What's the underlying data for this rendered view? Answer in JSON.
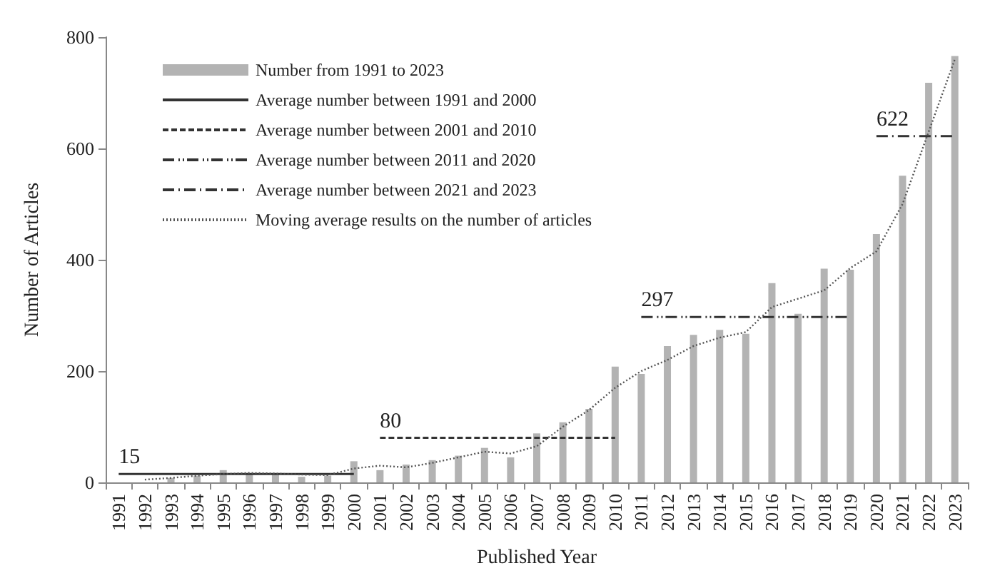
{
  "chart_data": {
    "type": "bar",
    "xlabel": "Published Year",
    "ylabel": "Number of Articles",
    "categories": [
      "1991",
      "1992",
      "1993",
      "1994",
      "1995",
      "1996",
      "1997",
      "1998",
      "1999",
      "2000",
      "2001",
      "2002",
      "2003",
      "2004",
      "2005",
      "2006",
      "2007",
      "2008",
      "2009",
      "2010",
      "2011",
      "2012",
      "2013",
      "2014",
      "2015",
      "2016",
      "2017",
      "2018",
      "2019",
      "2020",
      "2021",
      "2022",
      "2023"
    ],
    "series": [
      {
        "name": "Number from 1991 to 2023",
        "color": "#b3b3b3",
        "values": [
          null,
          null,
          8,
          12,
          22,
          16,
          14,
          10,
          12,
          38,
          22,
          32,
          40,
          48,
          62,
          45,
          88,
          108,
          132,
          208,
          195,
          245,
          265,
          274,
          267,
          358,
          303,
          384,
          382,
          446,
          551,
          718,
          766
        ]
      },
      {
        "name": "Average number between 1991 and 2000",
        "type": "line",
        "line_style": "solid",
        "color": "#333333",
        "values": [
          15,
          15,
          15,
          15,
          15,
          15,
          15,
          15,
          15,
          15,
          null,
          null,
          null,
          null,
          null,
          null,
          null,
          null,
          null,
          null,
          null,
          null,
          null,
          null,
          null,
          null,
          null,
          null,
          null,
          null,
          null,
          null,
          null
        ]
      },
      {
        "name": "Average number between 2001 and 2010",
        "type": "line",
        "line_style": "dashed",
        "color": "#333333",
        "values": [
          null,
          null,
          null,
          null,
          null,
          null,
          null,
          null,
          null,
          null,
          80,
          80,
          80,
          80,
          80,
          80,
          80,
          80,
          80,
          80,
          null,
          null,
          null,
          null,
          null,
          null,
          null,
          null,
          null,
          null,
          null,
          null,
          null
        ]
      },
      {
        "name": "Average number between 2011 and 2020",
        "type": "line",
        "line_style": "dashdotdot",
        "color": "#333333",
        "values": [
          null,
          null,
          null,
          null,
          null,
          null,
          null,
          null,
          null,
          null,
          null,
          null,
          null,
          null,
          null,
          null,
          null,
          null,
          null,
          null,
          297,
          297,
          297,
          297,
          297,
          297,
          297,
          297,
          297,
          null,
          null,
          null,
          null
        ]
      },
      {
        "name": "Average number between 2021 and 2023",
        "type": "line",
        "line_style": "dashdot",
        "color": "#333333",
        "values": [
          null,
          null,
          null,
          null,
          null,
          null,
          null,
          null,
          null,
          null,
          null,
          null,
          null,
          null,
          null,
          null,
          null,
          null,
          null,
          null,
          null,
          null,
          null,
          null,
          null,
          null,
          null,
          null,
          null,
          622,
          622,
          622,
          622
        ]
      },
      {
        "name": "Moving average results on the number of articles",
        "type": "line",
        "line_style": "dotted",
        "color": "#555555",
        "values": [
          null,
          5,
          8,
          12,
          15,
          17,
          16,
          14,
          13,
          25,
          30,
          27,
          35,
          45,
          55,
          52,
          65,
          100,
          130,
          170,
          200,
          220,
          245,
          260,
          270,
          315,
          330,
          345,
          385,
          415,
          500,
          630,
          760
        ]
      }
    ],
    "annotations": [
      {
        "text": "15",
        "x": "1991",
        "y": 15
      },
      {
        "text": "80",
        "x": "2001",
        "y": 80
      },
      {
        "text": "297",
        "x": "2011",
        "y": 297
      },
      {
        "text": "622",
        "x": "2020",
        "y": 622
      }
    ],
    "ylim": [
      0,
      800
    ],
    "yticks": [
      0,
      200,
      400,
      600,
      800
    ],
    "grid": false,
    "legend": "top left",
    "marker": "none"
  }
}
